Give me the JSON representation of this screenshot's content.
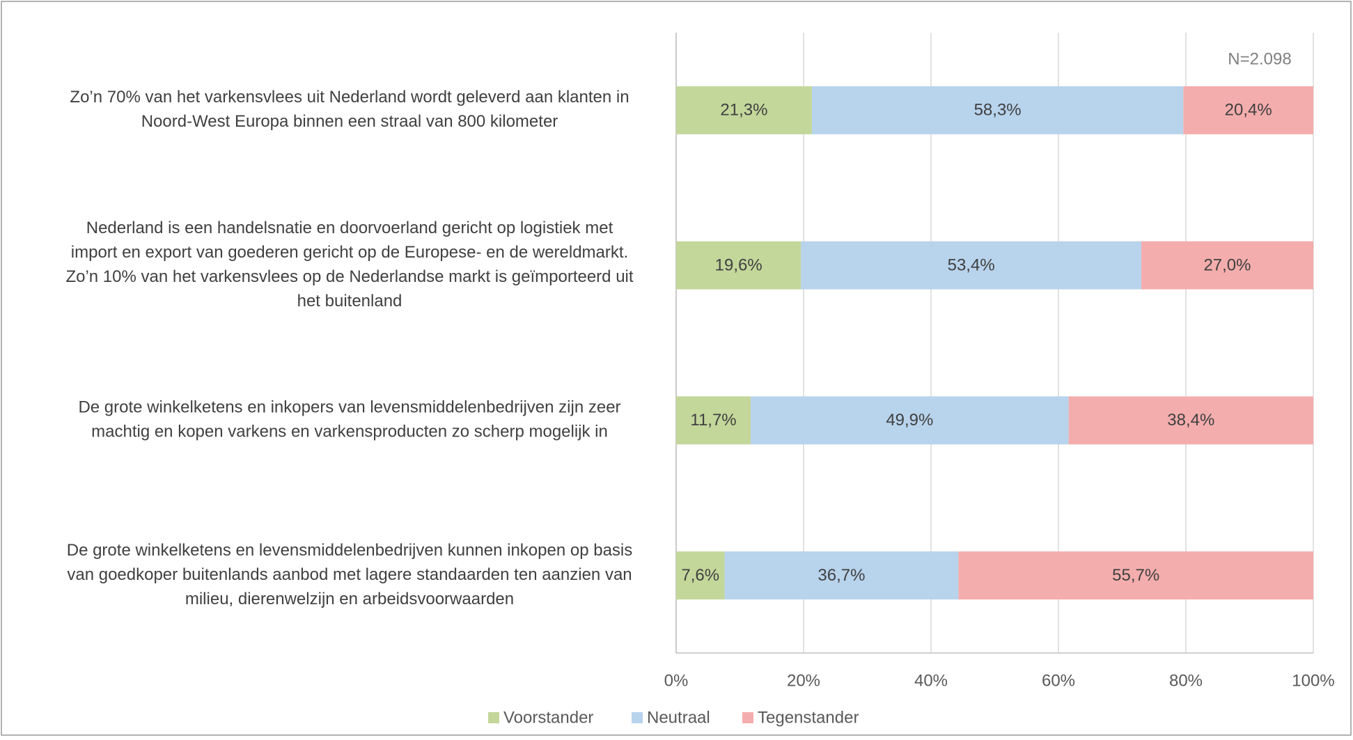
{
  "chart_data": {
    "type": "stacked_barh",
    "annotation": "N=2.098",
    "categories": [
      [
        "Zo’n 70% van het varkensvlees uit Nederland wordt geleverd aan klanten in",
        "Noord-West Europa binnen een straal van 800 kilometer"
      ],
      [
        "Nederland is een handelsnatie en doorvoerland gericht op logistiek met",
        "import en export van goederen gericht op de Europese- en de wereldmarkt.",
        "Zo’n 10% van het varkensvlees op de Nederlandse markt is geïmporteerd uit",
        "het buitenland"
      ],
      [
        "De grote winkelketens en inkopers van levensmiddelenbedrijven zijn zeer",
        "machtig en kopen varkens en varkensproducten zo scherp mogelijk in"
      ],
      [
        "De grote winkelketens en levensmiddelenbedrijven kunnen inkopen op basis",
        "van goedkoper buitenlands aanbod met lagere standaarden ten aanzien van",
        "milieu, dierenwelzijn en arbeidsvoorwaarden"
      ]
    ],
    "series": [
      {
        "name": "Voorstander",
        "color": "#c4d79b",
        "values": [
          21.3,
          19.6,
          11.7,
          7.6
        ],
        "value_labels": [
          "21,3%",
          "19,6%",
          "11,7%",
          "7,6%"
        ]
      },
      {
        "name": "Neutraal",
        "color": "#b8d3ec",
        "values": [
          58.3,
          53.4,
          49.9,
          36.7
        ],
        "value_labels": [
          "58,3%",
          "53,4%",
          "49,9%",
          "36,7%"
        ]
      },
      {
        "name": "Tegenstander",
        "color": "#f4adad",
        "values": [
          20.4,
          27.0,
          38.4,
          55.7
        ],
        "value_labels": [
          "20,4%",
          "27,0%",
          "38,4%",
          "55,7%"
        ]
      }
    ],
    "xlim": [
      0,
      100
    ],
    "xticks": [
      {
        "value": 0,
        "label": "0%"
      },
      {
        "value": 20,
        "label": "20%"
      },
      {
        "value": 40,
        "label": "40%"
      },
      {
        "value": 60,
        "label": "60%"
      },
      {
        "value": 80,
        "label": "80%"
      },
      {
        "value": 100,
        "label": "100%"
      }
    ],
    "grid": true,
    "legend": "bottom"
  }
}
